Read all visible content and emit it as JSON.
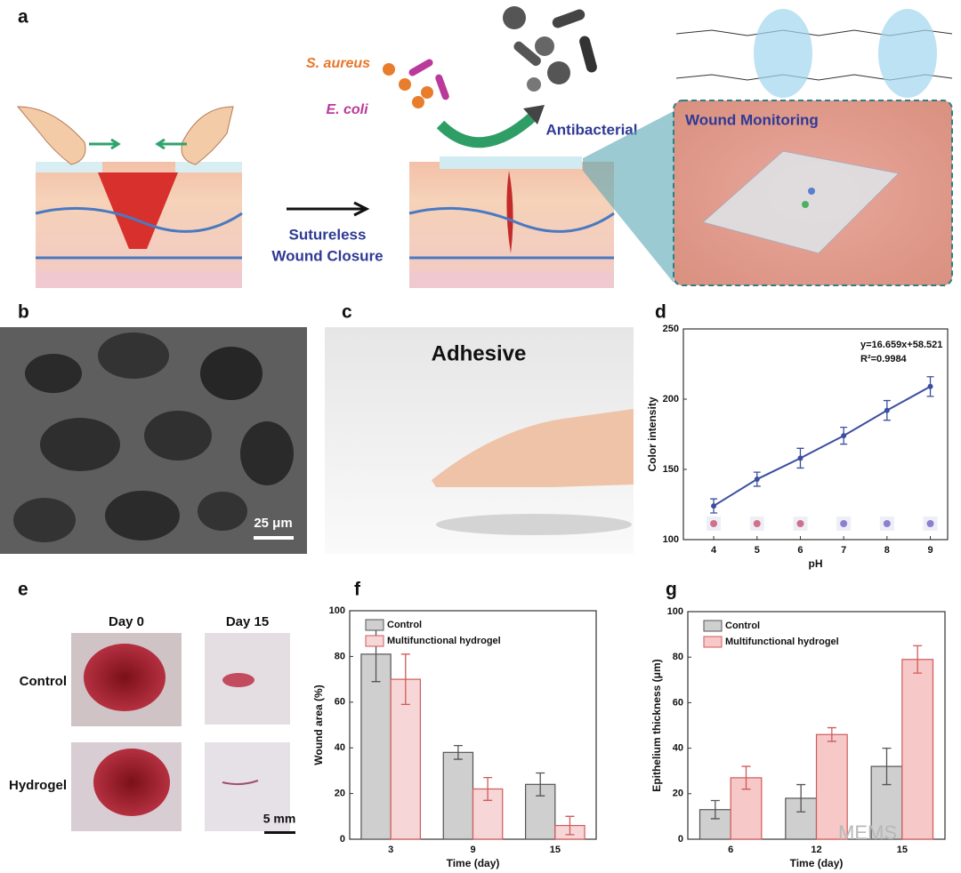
{
  "figure": {
    "panel_labels": [
      "a",
      "b",
      "c",
      "d",
      "e",
      "f",
      "g"
    ],
    "a": {
      "bacteria_1": "S. aureus",
      "bacteria_2": "E. coli",
      "antibacterial": "Antibacterial",
      "closure_1": "Sutureless",
      "closure_2": "Wound Closure",
      "monitoring": "Wound Monitoring"
    },
    "b": {
      "scale_bar": "25 μm"
    },
    "c": {
      "title": "Adhesive"
    },
    "e": {
      "columns": [
        "Day 0",
        "Day 15"
      ],
      "rows": [
        "Control",
        "Hydrogel"
      ],
      "scale_bar": "5 mm"
    },
    "watermark": "MEMS"
  },
  "chart_data": [
    {
      "type": "line",
      "x_label": "pH",
      "y_label": "Color intensity",
      "annotations": [
        "y=16.659x+58.521",
        "R²=0.9984"
      ],
      "x": [
        4,
        5,
        6,
        7,
        8,
        9
      ],
      "values": [
        124,
        143,
        158,
        174,
        192,
        209
      ],
      "errors": [
        5,
        5,
        7,
        6,
        7,
        7
      ],
      "color": "#3b4fa0",
      "xlim": [
        3.3,
        9.4
      ],
      "xticks": [
        4,
        5,
        6,
        7,
        8,
        9
      ],
      "ylim": [
        100,
        250
      ],
      "yticks": [
        100,
        150,
        200,
        250
      ]
    },
    {
      "type": "bar",
      "x_label": "Time (day)",
      "y_label": "Wound area (%)",
      "categories": [
        "3",
        "9",
        "15"
      ],
      "series": [
        {
          "name": "Control",
          "color": "#cfcfcf",
          "edge_color": "#555555",
          "values": [
            81,
            38,
            24
          ],
          "errors": [
            12,
            3,
            5
          ]
        },
        {
          "name": "Multifunctional hydrogel",
          "color": "#f6d6d6",
          "edge_color": "#d05a5a",
          "values": [
            70,
            22,
            6
          ],
          "errors": [
            11,
            5,
            4
          ]
        }
      ],
      "ylim": [
        0,
        100
      ],
      "yticks": [
        0,
        20,
        40,
        60,
        80,
        100
      ]
    },
    {
      "type": "bar",
      "x_label": "Time (day)",
      "y_label": "Epithelium thickness (μm)",
      "categories": [
        "6",
        "12",
        "15"
      ],
      "series": [
        {
          "name": "Control",
          "color": "#cfcfcf",
          "edge_color": "#555555",
          "values": [
            13,
            18,
            32
          ],
          "errors": [
            4,
            6,
            8
          ]
        },
        {
          "name": "Multifunctional hydrogel",
          "color": "#f6c8c8",
          "edge_color": "#d05a5a",
          "values": [
            27,
            46,
            79
          ],
          "errors": [
            5,
            3,
            6
          ]
        }
      ],
      "ylim": [
        0,
        100
      ],
      "yticks": [
        0,
        20,
        40,
        60,
        80,
        100
      ]
    }
  ]
}
